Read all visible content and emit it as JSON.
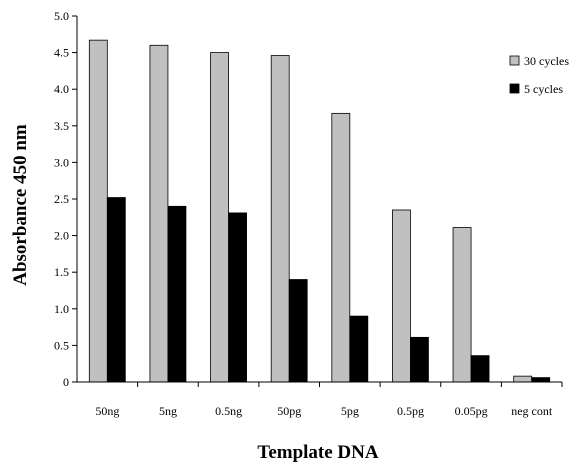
{
  "chart_data": {
    "type": "bar",
    "title": "",
    "xlabel": "Template DNA",
    "ylabel": "Absorbance 450 nm",
    "ylim": [
      0,
      5.0
    ],
    "yticks": [
      "0",
      "0.5",
      "1.0",
      "1.5",
      "2.0",
      "2.5",
      "3.0",
      "3.5",
      "4.0",
      "4.5",
      "5.0"
    ],
    "categories": [
      "50ng",
      "5ng",
      "0.5ng",
      "50pg",
      "5pg",
      "0.5pg",
      "0.05pg",
      "neg cont"
    ],
    "series": [
      {
        "name": "30 cycles",
        "color": "#c0c0c0",
        "values": [
          4.67,
          4.6,
          4.5,
          4.46,
          3.67,
          2.35,
          2.11,
          0.08
        ]
      },
      {
        "name": "5 cycles",
        "color": "#000000",
        "values": [
          2.52,
          2.4,
          2.31,
          1.4,
          0.9,
          0.61,
          0.36,
          0.06
        ]
      }
    ],
    "legend_position": "right",
    "grid": false
  }
}
